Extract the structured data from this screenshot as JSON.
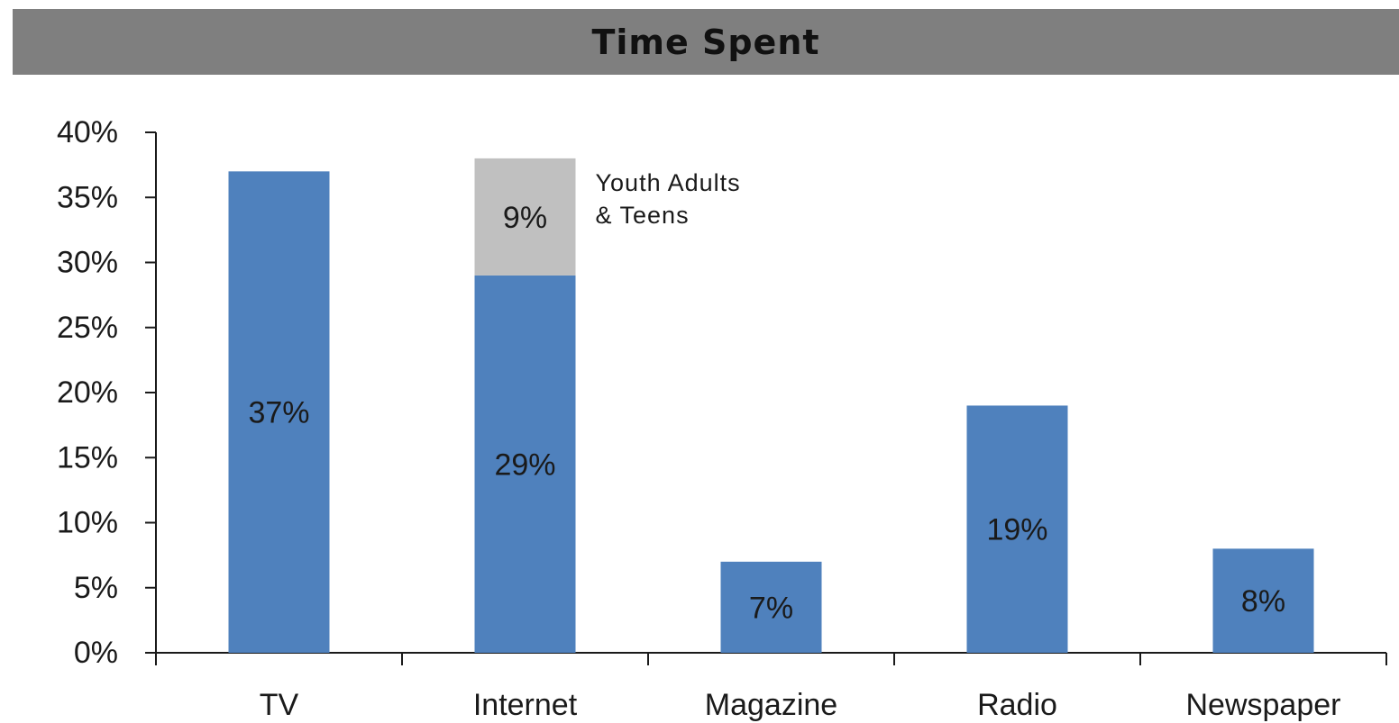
{
  "chart_data": {
    "type": "bar",
    "title": "Time Spent",
    "categories": [
      "TV",
      "Internet",
      "Magazine",
      "Radio",
      "Newspaper"
    ],
    "series": [
      {
        "values": [
          37,
          29,
          7,
          19,
          8
        ],
        "value_labels": [
          "37%",
          "29%",
          "7%",
          "19%",
          "8%"
        ],
        "color": "#4f81bd"
      },
      {
        "values": [
          0,
          9,
          0,
          0,
          0
        ],
        "value_labels": [
          "",
          "9%",
          "",
          "",
          ""
        ],
        "color": "#c0c0c0"
      }
    ],
    "stacked": true,
    "annotation": {
      "lines": [
        "Youth Adults",
        "& Teens"
      ],
      "category": "Internet"
    },
    "ylim": [
      0,
      40
    ],
    "yticks": [
      0,
      5,
      10,
      15,
      20,
      25,
      30,
      35,
      40
    ],
    "ytick_labels": [
      "0%",
      "5%",
      "10%",
      "15%",
      "20%",
      "25%",
      "30%",
      "35%",
      "40%"
    ],
    "xlabel": "",
    "ylabel": "",
    "grid": false,
    "legend": "none"
  },
  "colors": {
    "title_bar": "#7f7f7f",
    "primary_bar": "#4f81bd",
    "secondary_bar": "#c0c0c0"
  }
}
